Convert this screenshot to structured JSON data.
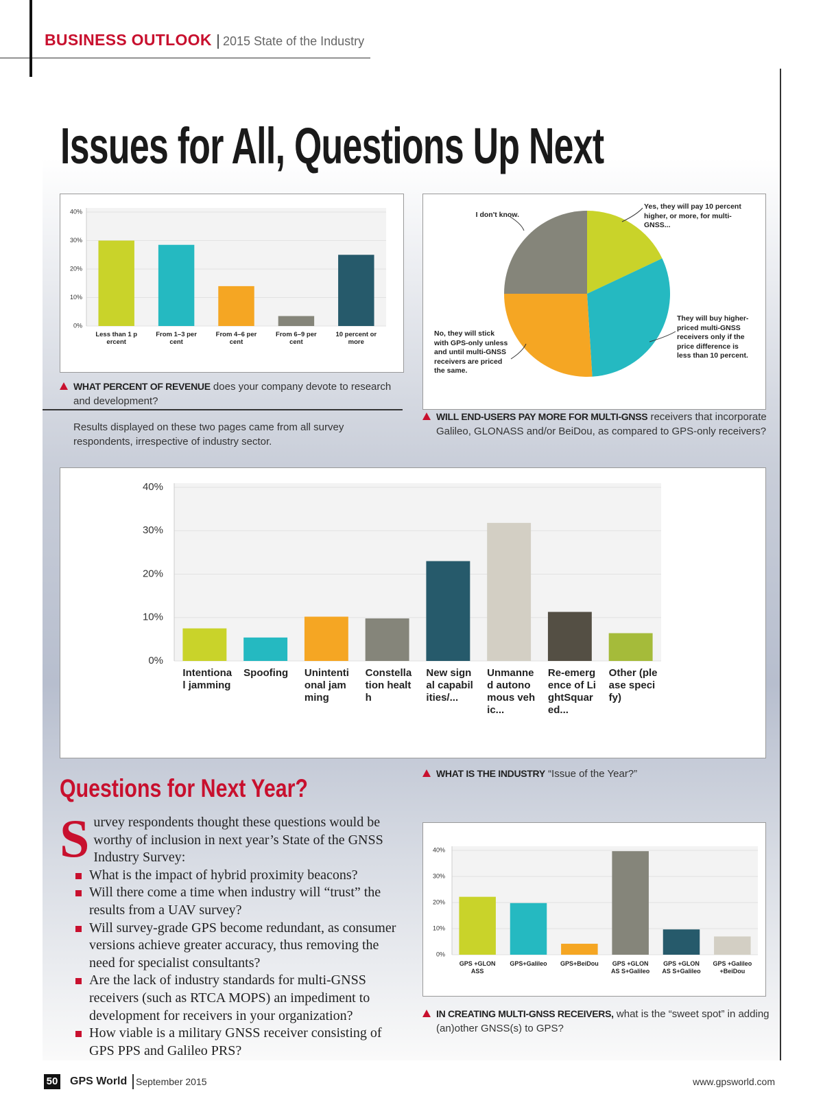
{
  "header": {
    "section": "BUSINESS OUTLOOK",
    "subtitle": "2015 State of the Industry"
  },
  "title": "Issues for All, Questions Up Next",
  "captions": [
    {
      "lead": "WHAT PERCENT OF REVENUE",
      "text": "does your company devote to research and development?"
    },
    {
      "lead": "WILL END-USERS PAY MORE FOR MULTI-GNSS",
      "text": "receivers that incorporate Galileo, GLONASS and/or BeiDou, as compared to GPS-only receivers?"
    },
    {
      "lead": "WHAT IS THE INDUSTRY",
      "text": "“Issue of the Year?”"
    },
    {
      "lead": "IN CREATING MULTI-GNSS RECEIVERS,",
      "text": "what is the “sweet spot” in adding (an)other GNSS(s) to GPS?"
    }
  ],
  "note": "Results displayed on these two pages came from all survey respondents, irrespective of industry sector.",
  "article": {
    "heading": "Questions for Next Year?",
    "dropcap": "S",
    "intro": "urvey respondents thought these questions would be worthy of inclusion in next year’s State of the GNSS Industry Survey:",
    "bullets": [
      "What is the impact of hybrid proximity beacons?",
      "Will there come a time when industry will “trust” the results from a UAV survey?",
      "Will survey-grade GPS become redundant, as consumer versions achieve greater accuracy, thus removing the need for specialist consultants?",
      "Are the lack of industry standards for multi-GNSS receivers (such as RTCA MOPS) an impediment to development for receivers in your organization?",
      "How viable is a military GNSS receiver consisting of GPS PPS and Galileo PRS?"
    ]
  },
  "footer": {
    "page": "50",
    "magazine": "GPS World",
    "date": "September 2015",
    "url": "www.gpsworld.com"
  },
  "chart_data": [
    {
      "type": "bar",
      "categories": [
        "Less than 1 percent",
        "From 1–3 percent",
        "From 4–6 percent",
        "From 6–9 percent",
        "10 percent or more"
      ],
      "values": [
        30,
        28.5,
        14,
        3.5,
        25
      ],
      "colors": [
        "#c9d32a",
        "#25b9c1",
        "#f5a623",
        "#85857a",
        "#265a6b"
      ],
      "ylim": [
        0,
        40
      ],
      "yticks": [
        {
          "value": 0,
          "label": "0%"
        },
        {
          "value": 10,
          "label": "10%"
        },
        {
          "value": 20,
          "label": "20%"
        },
        {
          "value": 30,
          "label": "30%"
        },
        {
          "value": 40,
          "label": "40%"
        }
      ],
      "grid": true
    },
    {
      "type": "pie",
      "categories": [
        "Yes, they will pay 10 percent higher, or more, for multi-GNSS...",
        "They will buy higher-priced multi-GNSS receivers only if the price difference is less than 10 percent.",
        "No, they will stick with GPS-only unless and until multi-GNSS receivers are priced the same.",
        "I don't know."
      ],
      "values": [
        18,
        31,
        26,
        25
      ],
      "colors": [
        "#c9d32a",
        "#25b9c1",
        "#f5a623",
        "#85857a"
      ]
    },
    {
      "type": "bar",
      "categories": [
        "Intentional jamming",
        "Spoofing",
        "Unintentional jamming",
        "Constellation health",
        "New signal capabilities/...",
        "Unmanned autonomous vehic...",
        "Re-emergence of LightSquared...",
        "Other (please specify)"
      ],
      "values": [
        7.5,
        5.4,
        10.2,
        9.8,
        23,
        31.8,
        11.3,
        6.4
      ],
      "colors": [
        "#c9d32a",
        "#25b9c1",
        "#f5a623",
        "#85857a",
        "#265a6b",
        "#d3cfc4",
        "#544f44",
        "#a5bb3a"
      ],
      "ylim": [
        0,
        40
      ],
      "yticks": [
        {
          "value": 0,
          "label": "0%"
        },
        {
          "value": 10,
          "label": "10%"
        },
        {
          "value": 20,
          "label": "20%"
        },
        {
          "value": 30,
          "label": "30%"
        },
        {
          "value": 40,
          "label": "40%"
        }
      ],
      "grid": true
    },
    {
      "type": "bar",
      "categories": [
        "GPS +GLONASS",
        "GPS+Galileo",
        "GPS+BeiDou",
        "GPS +GLONAS S+Galileo",
        "GPS +GLONAS S+Galileo",
        "GPS +Galileo +BeiDou"
      ],
      "values": [
        22.2,
        19.8,
        4.2,
        39.7,
        9.7,
        7
      ],
      "colors": [
        "#c9d32a",
        "#25b9c1",
        "#f5a623",
        "#85857a",
        "#265a6b",
        "#d3cfc4"
      ],
      "ylim": [
        0,
        40
      ],
      "yticks": [
        {
          "value": 0,
          "label": "0%"
        },
        {
          "value": 10,
          "label": "10%"
        },
        {
          "value": 20,
          "label": "20%"
        },
        {
          "value": 30,
          "label": "30%"
        },
        {
          "value": 40,
          "label": "40%"
        }
      ],
      "grid": true
    }
  ]
}
